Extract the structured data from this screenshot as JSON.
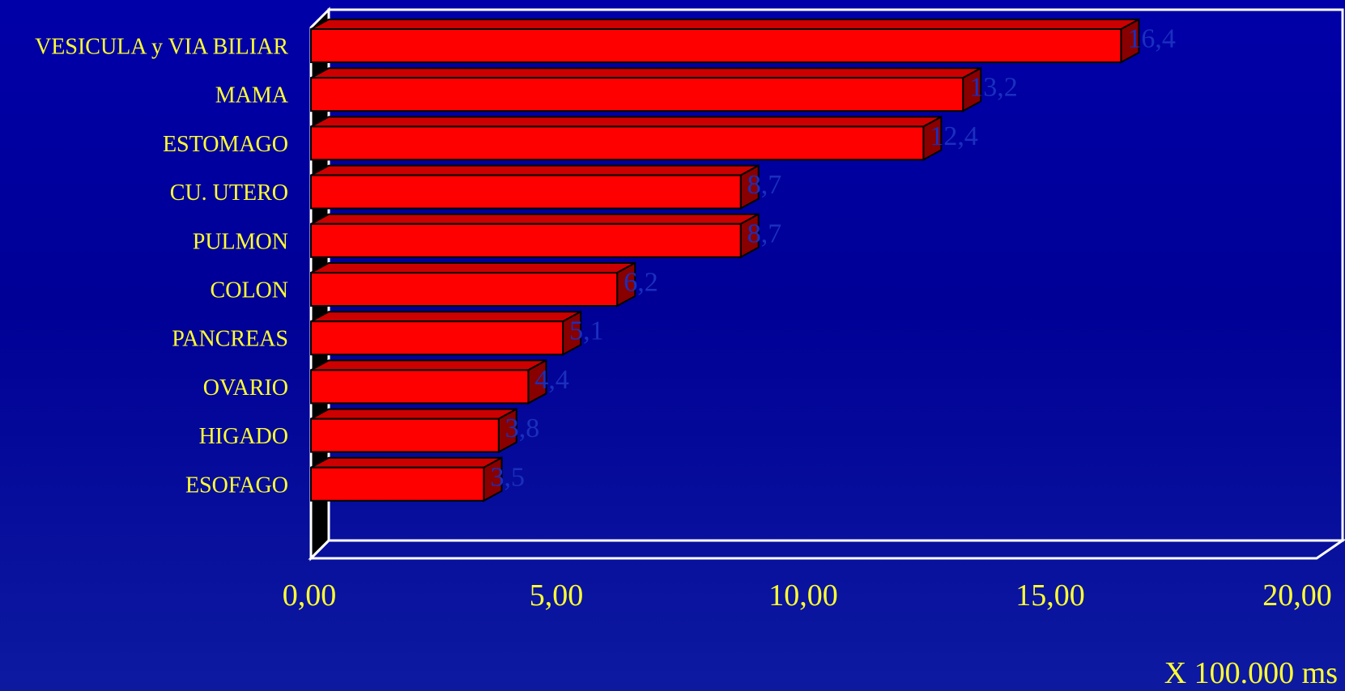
{
  "chart_data": {
    "type": "bar",
    "orientation": "horizontal",
    "categories": [
      "VESICULA y VIA BILIAR",
      "MAMA",
      "ESTOMAGO",
      "CU. UTERO",
      "PULMON",
      "COLON",
      "PANCREAS",
      "OVARIO",
      "HIGADO",
      "ESOFAGO"
    ],
    "values": [
      16.4,
      13.2,
      12.4,
      8.7,
      8.7,
      6.2,
      5.1,
      4.4,
      3.8,
      3.5
    ],
    "value_labels": [
      "16,4",
      "13,2",
      "12,4",
      "8,7",
      "8,7",
      "6,2",
      "5,1",
      "4,4",
      "3,8",
      "3,5"
    ],
    "x_ticks": [
      "0,00",
      "5,00",
      "10,00",
      "15,00",
      "20,00"
    ],
    "xlim": [
      0,
      20
    ],
    "unit_label": "X 100.000 ms",
    "title": "",
    "xlabel": "",
    "ylabel": "",
    "style": "3d-bar",
    "grid": false,
    "colors": {
      "bar_front": "#ff0000",
      "bar_top": "#cc0000",
      "bar_side": "#880000",
      "frame": "#ffffff",
      "text": "#ffff33",
      "data_label": "#1a2fbf",
      "left_wall": "#000000"
    }
  }
}
